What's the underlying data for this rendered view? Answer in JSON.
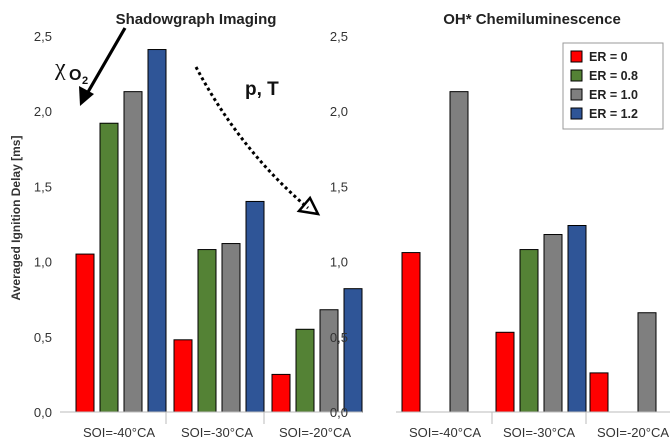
{
  "chart_data": [
    {
      "type": "bar",
      "title": "Shadowgraph Imaging",
      "ylabel": "Averaged Ignition Delay [ms]",
      "ylim": [
        0,
        2.5
      ],
      "yticks": [
        "0,0",
        "0,5",
        "1,0",
        "1,5",
        "2,0",
        "2,5"
      ],
      "categories": [
        "SOI=-40°CA",
        "SOI=-30°CA",
        "SOI=-20°CA"
      ],
      "series": [
        {
          "name": "ER = 0",
          "color": "#ff0000",
          "values": [
            1.05,
            0.48,
            0.25
          ]
        },
        {
          "name": "ER = 0.8",
          "color": "#548235",
          "values": [
            1.92,
            1.08,
            0.55
          ]
        },
        {
          "name": "ER = 1.0",
          "color": "#7f7f7f",
          "values": [
            2.13,
            1.12,
            0.68
          ]
        },
        {
          "name": "ER = 1.2",
          "color": "#2f5597",
          "values": [
            2.41,
            1.4,
            0.82
          ]
        }
      ],
      "annotations": {
        "chi_symbol": "χ",
        "chi_subscript": "O",
        "chi_sub_digit": "2",
        "pT": "p, T"
      }
    },
    {
      "type": "bar",
      "title": "OH* Chemiluminescence",
      "ylim": [
        0,
        2.5
      ],
      "yticks": [
        "0,0",
        "0,5",
        "1,0",
        "1,5",
        "2,0",
        "2,5"
      ],
      "categories": [
        "SOI=-40°CA",
        "SOI=-30°CA",
        "SOI=-20°CA"
      ],
      "series": [
        {
          "name": "ER = 0",
          "color": "#ff0000",
          "values": [
            1.06,
            0.53,
            0.26
          ]
        },
        {
          "name": "ER = 0.8",
          "color": "#548235",
          "values": [
            null,
            1.08,
            null
          ]
        },
        {
          "name": "ER = 1.0",
          "color": "#7f7f7f",
          "values": [
            2.13,
            1.18,
            0.66
          ]
        },
        {
          "name": "ER = 1.2",
          "color": "#2f5597",
          "values": [
            null,
            1.24,
            null
          ]
        }
      ],
      "legend": {
        "placement": "top-right",
        "entries": [
          "ER = 0",
          "ER = 0.8",
          "ER = 1.0",
          "ER = 1.2"
        ]
      }
    }
  ]
}
